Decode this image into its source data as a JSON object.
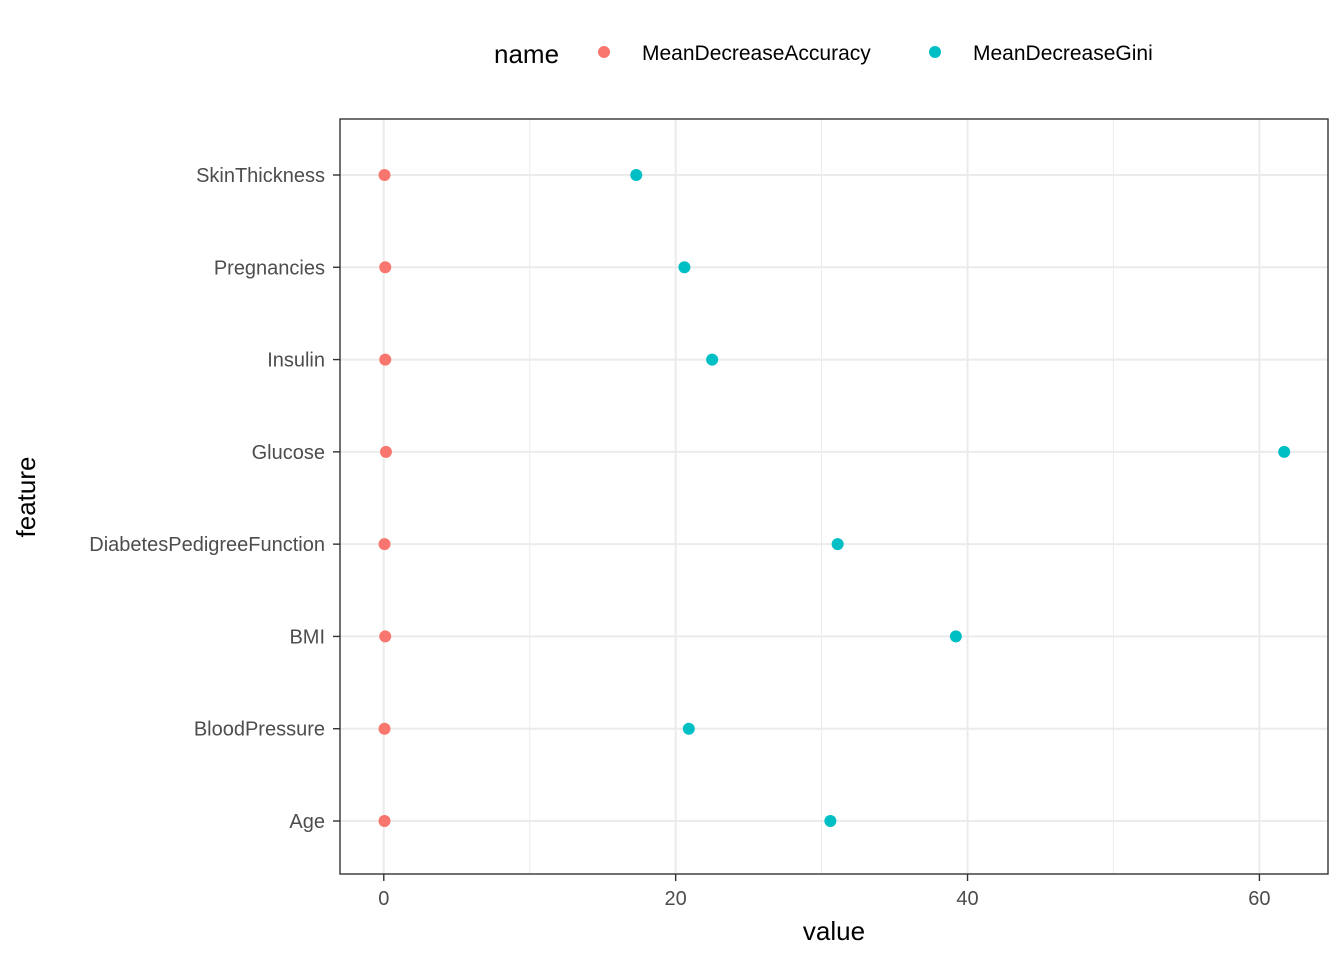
{
  "chart_data": {
    "type": "scatter",
    "title": "",
    "xlabel": "value",
    "ylabel": "feature",
    "xlim": [
      -3,
      64.7
    ],
    "x_ticks": [
      0,
      20,
      40,
      60
    ],
    "categories": [
      "Age",
      "BloodPressure",
      "BMI",
      "DiabetesPedigreeFunction",
      "Glucose",
      "Insulin",
      "Pregnancies",
      "SkinThickness"
    ],
    "grid": true,
    "legend": {
      "title": "name",
      "position": "top"
    },
    "series": [
      {
        "name": "MeanDecreaseAccuracy",
        "color": "#F8766D",
        "values": [
          0.05,
          0.05,
          0.1,
          0.05,
          0.15,
          0.1,
          0.1,
          0.05
        ]
      },
      {
        "name": "MeanDecreaseGini",
        "color": "#00BFC4",
        "values": [
          30.6,
          20.9,
          39.2,
          31.1,
          61.7,
          22.5,
          20.6,
          17.3
        ]
      }
    ]
  }
}
